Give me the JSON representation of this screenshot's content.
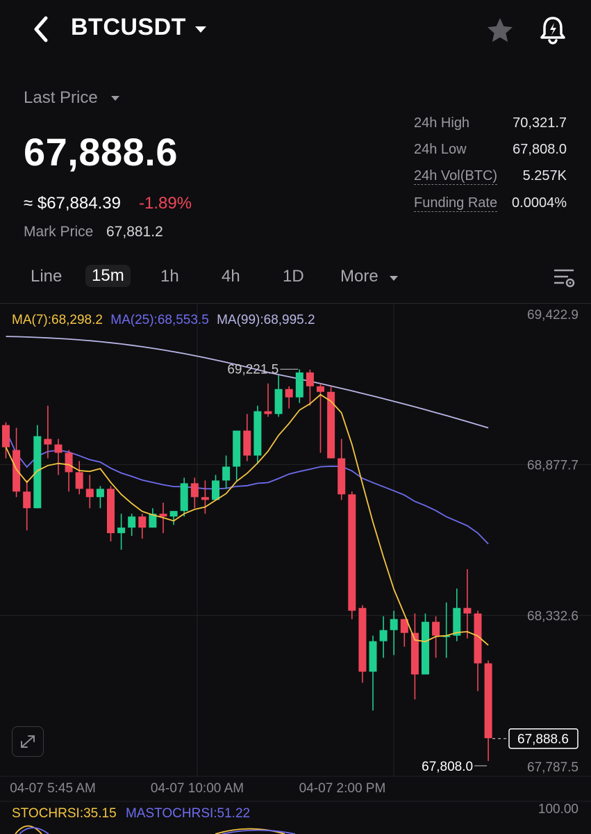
{
  "header": {
    "symbol": "BTCUSDT",
    "icons": [
      "back-arrow-icon",
      "caret-down-icon",
      "star-icon",
      "price-alert-bell-icon"
    ]
  },
  "ticker": {
    "last_price_label": "Last Price",
    "last_price": "67,888.6",
    "approx_usd": "≈ $67,884.39",
    "change_pct": "-1.89%",
    "mark_price_label": "Mark Price",
    "mark_price": "67,881.2"
  },
  "stats": [
    {
      "label": "24h High",
      "value": "70,321.7",
      "dotted": false
    },
    {
      "label": "24h Low",
      "value": "67,808.0",
      "dotted": false
    },
    {
      "label": "24h Vol(BTC)",
      "value": "5.257K",
      "dotted": true
    },
    {
      "label": "Funding Rate",
      "value": "0.0004%",
      "dotted": true
    }
  ],
  "timeframes": {
    "tabs": [
      "Line",
      "15m",
      "1h",
      "4h",
      "1D",
      "More"
    ],
    "active": "15m"
  },
  "chart_data": {
    "type": "candlestick",
    "interval": "15m",
    "up_color": "#1fcf8f",
    "down_color": "#f0465a",
    "moving_averages": [
      {
        "label": "MA(7):68,298.2",
        "color": "#f5c542"
      },
      {
        "label": "MA(25):68,553.5",
        "color": "#6f6cf0"
      },
      {
        "label": "MA(99):68,995.2",
        "color": "#b9b6e6"
      }
    ],
    "price_axis_labels": [
      "69,422.9",
      "68,877.7",
      "68,332.6",
      "67,787.5"
    ],
    "time_axis_labels": [
      "04-07 5:45 AM",
      "04-07 10:00 AM",
      "04-07 2:00 PM"
    ],
    "high_marker": "69,221.5",
    "low_marker": "67,808.0",
    "current_price_tag": "67,888.6",
    "ylim": [
      67787.5,
      69422.9
    ],
    "candles": [
      [
        69020,
        68940,
        69030,
        68900
      ],
      [
        68930,
        68780,
        69010,
        68760
      ],
      [
        68780,
        68720,
        68820,
        68640
      ],
      [
        68720,
        68980,
        69020,
        68720
      ],
      [
        68970,
        68950,
        69090,
        68900
      ],
      [
        68950,
        68920,
        68970,
        68840
      ],
      [
        68920,
        68850,
        68930,
        68780
      ],
      [
        68850,
        68790,
        68890,
        68770
      ],
      [
        68790,
        68760,
        68840,
        68720
      ],
      [
        68760,
        68790,
        68800,
        68720
      ],
      [
        68790,
        68630,
        68800,
        68600
      ],
      [
        68630,
        68650,
        68700,
        68570
      ],
      [
        68650,
        68690,
        68700,
        68620
      ],
      [
        68690,
        68650,
        68700,
        68610
      ],
      [
        68650,
        68700,
        68720,
        68650
      ],
      [
        68700,
        68690,
        68740,
        68630
      ],
      [
        68690,
        68710,
        68710,
        68660
      ],
      [
        68710,
        68810,
        68830,
        68690
      ],
      [
        68810,
        68760,
        68830,
        68720
      ],
      [
        68760,
        68750,
        68820,
        68700
      ],
      [
        68750,
        68820,
        68840,
        68750
      ],
      [
        68820,
        68870,
        68910,
        68790
      ],
      [
        68870,
        69000,
        69000,
        68820
      ],
      [
        69000,
        68910,
        69060,
        68890
      ],
      [
        68910,
        69070,
        69090,
        68880
      ],
      [
        69070,
        69060,
        69170,
        69050
      ],
      [
        69060,
        69150,
        69200,
        69050
      ],
      [
        69150,
        69120,
        69160,
        69080
      ],
      [
        69120,
        69210,
        69221,
        69100
      ],
      [
        69210,
        69160,
        69220,
        69090
      ],
      [
        69160,
        69140,
        69170,
        68920
      ],
      [
        69140,
        68900,
        69160,
        68900
      ],
      [
        68900,
        68770,
        68970,
        68750
      ],
      [
        68770,
        68350,
        68780,
        68320
      ],
      [
        68360,
        68130,
        68370,
        68090
      ],
      [
        68130,
        68240,
        68260,
        67990
      ],
      [
        68240,
        68280,
        68330,
        68180
      ],
      [
        68280,
        68320,
        68350,
        68190
      ],
      [
        68320,
        68270,
        68320,
        68220
      ],
      [
        68270,
        68120,
        68340,
        68030
      ],
      [
        68120,
        68310,
        68340,
        68120
      ],
      [
        68310,
        68260,
        68330,
        68180
      ],
      [
        68260,
        68260,
        68380,
        68180
      ],
      [
        68260,
        68360,
        68430,
        68240
      ],
      [
        68360,
        68340,
        68500,
        68250
      ],
      [
        68340,
        68160,
        68350,
        68060
      ],
      [
        68160,
        67890,
        68170,
        67808
      ]
    ]
  },
  "controls": {
    "expand_icon": "expand-arrows-icon",
    "settings_icon": "chart-settings-icon"
  },
  "indicator": {
    "stochrsi": "STOCHRSI:35.15",
    "mastochrsi": "MASTOCHRSI:51.22",
    "axis_top": "100.00"
  }
}
